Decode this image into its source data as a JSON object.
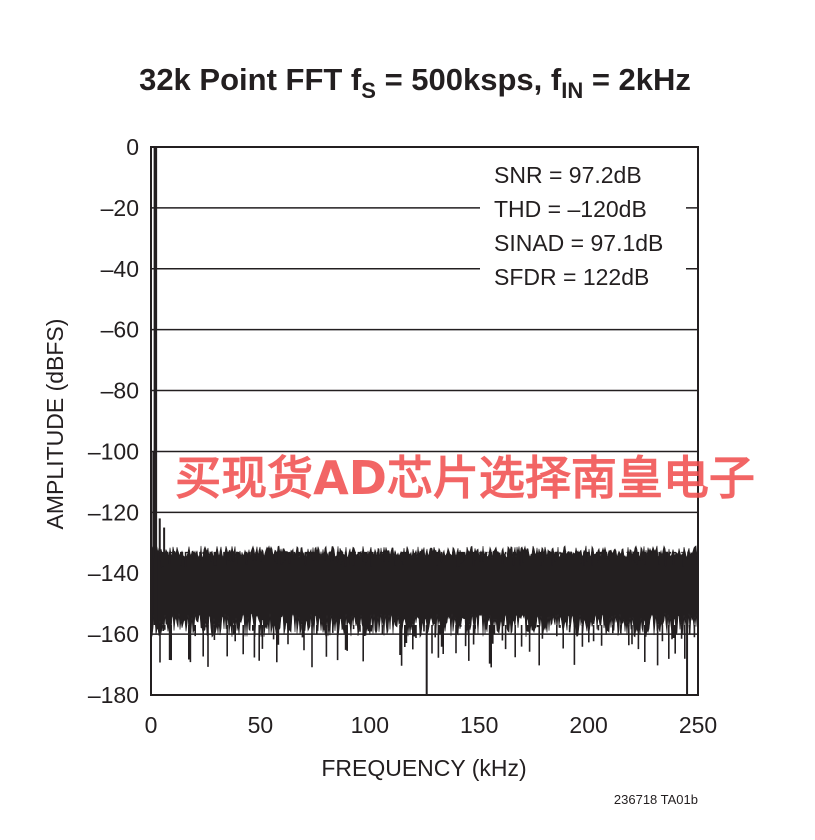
{
  "chart_data": {
    "type": "line",
    "title": {
      "main": "32k Point FFT f",
      "fs_sub": "S",
      "middle": " = 500ksps, f",
      "fin_sub": "IN",
      "end": " = 2kHz"
    },
    "xlabel": "FREQUENCY (kHz)",
    "ylabel": "AMPLITUDE (dBFS)",
    "xlim": [
      0,
      250
    ],
    "ylim": [
      -180,
      0
    ],
    "x_ticks": [
      0,
      50,
      100,
      150,
      200,
      250
    ],
    "x_tick_labels": [
      "0",
      "50",
      "100",
      "150",
      "200",
      "250"
    ],
    "y_ticks": [
      0,
      -20,
      -40,
      -60,
      -80,
      -100,
      -120,
      -140,
      -160,
      -180
    ],
    "y_tick_labels": [
      "0",
      "–20",
      "–40",
      "–60",
      "–80",
      "–100",
      "–120",
      "–140",
      "–160",
      "–180"
    ],
    "grid": "horizontal",
    "annotations": [
      "SNR = 97.2dB",
      "THD = –120dB",
      "SINAD = 97.1dB",
      "SFDR = 122dB"
    ],
    "series": [
      {
        "peak": {
          "x": 2,
          "y": 0
        },
        "noise_floor": {
          "x_range": [
            0,
            250
          ],
          "upper_typical": -133,
          "upper_max": -121,
          "lower_typical": -157,
          "lower_min": -180
        },
        "spurs": [
          {
            "x": 4,
            "y": -122
          },
          {
            "x": 6,
            "y": -125
          },
          {
            "x": 126,
            "y": -180
          },
          {
            "x": 245,
            "y": -180
          }
        ]
      }
    ],
    "color": "#231f20"
  },
  "figure_code": "236718 TA01b",
  "watermark": "买现货AD芯片选择南皇电子",
  "watermark_color": "#f04a4a"
}
